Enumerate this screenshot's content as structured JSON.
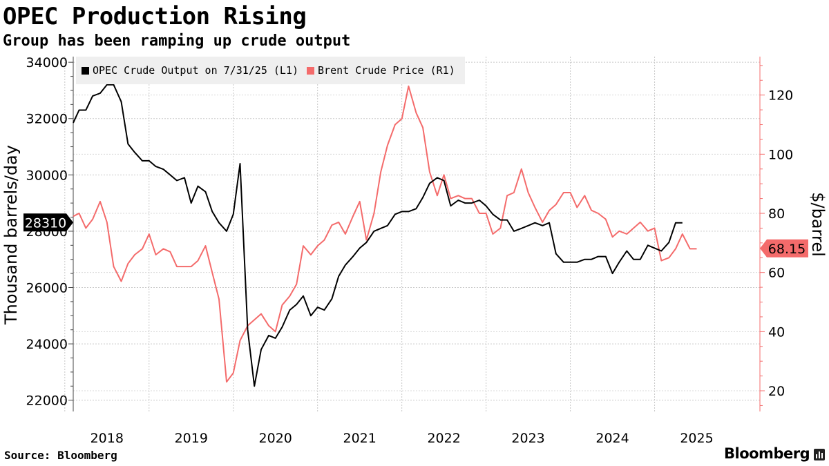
{
  "header": {
    "title": "OPEC Production Rising",
    "subtitle": "Group has been ramping up crude output"
  },
  "legend": {
    "items": [
      {
        "label": "OPEC Crude Output on 7/31/25 (L1)",
        "color": "#000000"
      },
      {
        "label": "Brent Crude Price (R1)",
        "color": "#f46b6b"
      }
    ]
  },
  "footer": {
    "source": "Source: Bloomberg",
    "brand": "Bloomberg"
  },
  "chart_data": {
    "type": "line",
    "title": "OPEC Production Rising",
    "subtitle": "Group has been ramping up crude output",
    "x_range": [
      2017.6,
      2025.75
    ],
    "x_ticks": [
      {
        "label": "2018",
        "x": 2018
      },
      {
        "label": "2019",
        "x": 2019
      },
      {
        "label": "2020",
        "x": 2020
      },
      {
        "label": "2021",
        "x": 2021
      },
      {
        "label": "2022",
        "x": 2022
      },
      {
        "label": "2023",
        "x": 2023
      },
      {
        "label": "2024",
        "x": 2024
      },
      {
        "label": "2025",
        "x": 2025
      }
    ],
    "gridlines": true,
    "legend_position": "top-left",
    "y_left": {
      "label": "Thousand barrels/day",
      "range": [
        21600,
        34200
      ],
      "ticks": [
        22000,
        24000,
        26000,
        28000,
        30000,
        32000,
        34000
      ],
      "tick_labels": [
        "22000",
        "24000",
        "26000",
        "28000",
        "30000",
        "32000",
        "34000"
      ],
      "last_value_label": "28310",
      "last_value": 28310
    },
    "y_right": {
      "label": "$/barrel",
      "range": [
        13,
        133
      ],
      "ticks": [
        20,
        40,
        60,
        80,
        100,
        120
      ],
      "tick_labels": [
        "20",
        "40",
        "60",
        "80",
        "100",
        "120"
      ],
      "last_value_label": "68.15",
      "last_value": 68.15
    },
    "series": [
      {
        "name": "OPEC Crude Output on 7/31/25 (L1)",
        "axis": "left",
        "color": "#000000",
        "points": [
          [
            2017.6,
            31850
          ],
          [
            2017.67,
            32300
          ],
          [
            2017.75,
            32300
          ],
          [
            2017.83,
            32800
          ],
          [
            2017.92,
            32900
          ],
          [
            2018.0,
            33200
          ],
          [
            2018.08,
            33200
          ],
          [
            2018.17,
            32600
          ],
          [
            2018.25,
            31100
          ],
          [
            2018.33,
            30800
          ],
          [
            2018.42,
            30500
          ],
          [
            2018.5,
            30500
          ],
          [
            2018.58,
            30300
          ],
          [
            2018.67,
            30200
          ],
          [
            2018.75,
            30000
          ],
          [
            2018.83,
            29800
          ],
          [
            2018.92,
            29900
          ],
          [
            2019.0,
            29000
          ],
          [
            2019.08,
            29600
          ],
          [
            2019.17,
            29400
          ],
          [
            2019.25,
            28700
          ],
          [
            2019.33,
            28300
          ],
          [
            2019.42,
            28000
          ],
          [
            2019.5,
            28600
          ],
          [
            2019.58,
            30400
          ],
          [
            2019.67,
            24500
          ],
          [
            2019.75,
            22500
          ],
          [
            2019.83,
            23800
          ],
          [
            2019.92,
            24300
          ],
          [
            2020.0,
            24200
          ],
          [
            2020.08,
            24600
          ],
          [
            2020.17,
            25200
          ],
          [
            2020.25,
            25400
          ],
          [
            2020.33,
            25700
          ],
          [
            2020.42,
            25000
          ],
          [
            2020.5,
            25300
          ],
          [
            2020.58,
            25200
          ],
          [
            2020.67,
            25600
          ],
          [
            2020.75,
            26400
          ],
          [
            2020.83,
            26800
          ],
          [
            2020.92,
            27100
          ],
          [
            2021.0,
            27400
          ],
          [
            2021.08,
            27600
          ],
          [
            2021.17,
            28000
          ],
          [
            2021.25,
            28100
          ],
          [
            2021.33,
            28200
          ],
          [
            2021.42,
            28600
          ],
          [
            2021.5,
            28700
          ],
          [
            2021.58,
            28700
          ],
          [
            2021.67,
            28800
          ],
          [
            2021.75,
            29200
          ],
          [
            2021.83,
            29700
          ],
          [
            2021.92,
            29900
          ],
          [
            2022.0,
            29800
          ],
          [
            2022.08,
            28900
          ],
          [
            2022.17,
            29100
          ],
          [
            2022.25,
            29000
          ],
          [
            2022.33,
            29000
          ],
          [
            2022.42,
            29100
          ],
          [
            2022.5,
            28900
          ],
          [
            2022.58,
            28600
          ],
          [
            2022.67,
            28400
          ],
          [
            2022.75,
            28400
          ],
          [
            2022.83,
            28000
          ],
          [
            2022.92,
            28100
          ],
          [
            2023.0,
            28200
          ],
          [
            2023.08,
            28300
          ],
          [
            2023.17,
            28200
          ],
          [
            2023.25,
            28300
          ],
          [
            2023.33,
            27200
          ],
          [
            2023.42,
            26900
          ],
          [
            2023.5,
            26900
          ],
          [
            2023.58,
            26900
          ],
          [
            2023.67,
            27000
          ],
          [
            2023.75,
            27000
          ],
          [
            2023.83,
            27100
          ],
          [
            2023.92,
            27100
          ],
          [
            2024.0,
            26500
          ],
          [
            2024.08,
            26900
          ],
          [
            2024.17,
            27300
          ],
          [
            2024.25,
            27000
          ],
          [
            2024.33,
            27000
          ],
          [
            2024.42,
            27500
          ],
          [
            2024.5,
            27400
          ],
          [
            2024.58,
            27300
          ],
          [
            2024.67,
            27600
          ],
          [
            2024.75,
            28300
          ],
          [
            2024.83,
            28300
          ]
        ]
      },
      {
        "name": "Brent Crude Price (R1)",
        "axis": "right",
        "color": "#f46b6b",
        "points": [
          [
            2017.6,
            79
          ],
          [
            2017.67,
            80
          ],
          [
            2017.75,
            75
          ],
          [
            2017.83,
            78
          ],
          [
            2017.92,
            84
          ],
          [
            2018.0,
            77
          ],
          [
            2018.08,
            62
          ],
          [
            2018.17,
            57
          ],
          [
            2018.25,
            63
          ],
          [
            2018.33,
            66
          ],
          [
            2018.42,
            68
          ],
          [
            2018.5,
            73
          ],
          [
            2018.58,
            66
          ],
          [
            2018.67,
            68
          ],
          [
            2018.75,
            67
          ],
          [
            2018.83,
            62
          ],
          [
            2018.92,
            62
          ],
          [
            2019.0,
            62
          ],
          [
            2019.08,
            64
          ],
          [
            2019.17,
            69
          ],
          [
            2019.25,
            60
          ],
          [
            2019.33,
            51
          ],
          [
            2019.42,
            23
          ],
          [
            2019.5,
            26
          ],
          [
            2019.58,
            37
          ],
          [
            2019.67,
            42
          ],
          [
            2019.75,
            44
          ],
          [
            2019.83,
            46
          ],
          [
            2019.92,
            42
          ],
          [
            2020.0,
            40
          ],
          [
            2020.08,
            49
          ],
          [
            2020.17,
            52
          ],
          [
            2020.25,
            56
          ],
          [
            2020.33,
            69
          ],
          [
            2020.42,
            66
          ],
          [
            2020.5,
            69
          ],
          [
            2020.58,
            71
          ],
          [
            2020.67,
            76
          ],
          [
            2020.75,
            77
          ],
          [
            2020.83,
            73
          ],
          [
            2020.92,
            79
          ],
          [
            2021.0,
            84
          ],
          [
            2021.08,
            71
          ],
          [
            2021.17,
            80
          ],
          [
            2021.25,
            94
          ],
          [
            2021.33,
            103
          ],
          [
            2021.42,
            110
          ],
          [
            2021.5,
            112
          ],
          [
            2021.58,
            123
          ],
          [
            2021.67,
            114
          ],
          [
            2021.75,
            109
          ],
          [
            2021.83,
            94
          ],
          [
            2021.92,
            86
          ],
          [
            2022.0,
            93
          ],
          [
            2022.08,
            85
          ],
          [
            2022.17,
            86
          ],
          [
            2022.25,
            85
          ],
          [
            2022.33,
            85
          ],
          [
            2022.42,
            80
          ],
          [
            2022.5,
            80
          ],
          [
            2022.58,
            73
          ],
          [
            2022.67,
            75
          ],
          [
            2022.75,
            86
          ],
          [
            2022.83,
            87
          ],
          [
            2022.92,
            95
          ],
          [
            2023.0,
            87
          ],
          [
            2023.08,
            82
          ],
          [
            2023.17,
            77
          ],
          [
            2023.25,
            81
          ],
          [
            2023.33,
            83
          ],
          [
            2023.42,
            87
          ],
          [
            2023.5,
            87
          ],
          [
            2023.58,
            82
          ],
          [
            2023.67,
            86
          ],
          [
            2023.75,
            81
          ],
          [
            2023.83,
            80
          ],
          [
            2023.92,
            78
          ],
          [
            2024.0,
            72
          ],
          [
            2024.08,
            74
          ],
          [
            2024.17,
            73
          ],
          [
            2024.25,
            75
          ],
          [
            2024.33,
            77
          ],
          [
            2024.42,
            74
          ],
          [
            2024.5,
            75
          ],
          [
            2024.58,
            64
          ],
          [
            2024.67,
            65
          ],
          [
            2024.75,
            68
          ],
          [
            2024.83,
            73
          ],
          [
            2024.92,
            68
          ],
          [
            2025.0,
            68
          ]
        ]
      }
    ]
  }
}
